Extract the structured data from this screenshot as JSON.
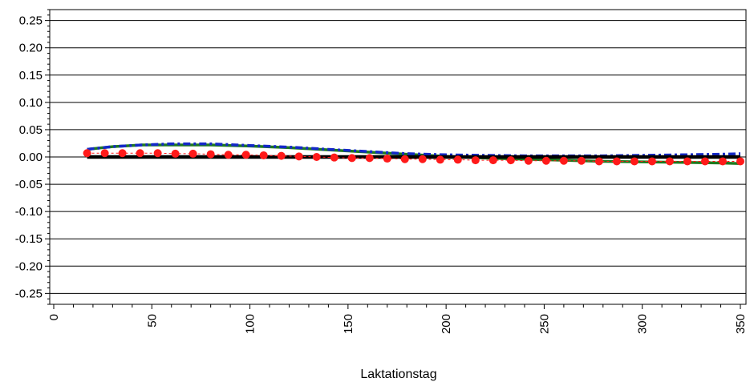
{
  "chart_data": {
    "type": "line",
    "title": "",
    "xlabel": "Laktationstag",
    "ylabel": "",
    "xlim": [
      0,
      350
    ],
    "ylim": [
      -0.27,
      0.27
    ],
    "grid": "horizontal",
    "x_ticks": [
      "0",
      "50",
      "100",
      "150",
      "200",
      "250",
      "300",
      "350"
    ],
    "y_ticks": [
      "0.25",
      "0.20",
      "0.15",
      "0.10",
      "0.05",
      "0.00",
      "-0.05",
      "-0.10",
      "-0.15",
      "-0.20",
      "-0.25"
    ],
    "colors": {
      "black_series": "#000000",
      "blue_series": "#1428c8",
      "green_series": "#1e7a1e",
      "red_series": "#ff1a1a"
    },
    "series": [
      {
        "color_key": "green_series",
        "style": "solid",
        "x": [
          17,
          30,
          45,
          60,
          80,
          100,
          120,
          140,
          160,
          180,
          200,
          220,
          240,
          260,
          280,
          300,
          320,
          340,
          350
        ],
        "y": [
          0.014,
          0.019,
          0.022,
          0.022,
          0.022,
          0.02,
          0.017,
          0.013,
          0.009,
          0.005,
          0.001,
          -0.002,
          -0.004,
          -0.006,
          -0.008,
          -0.009,
          -0.01,
          -0.011,
          -0.012
        ]
      },
      {
        "color_key": "blue_series",
        "style": "dash-dot",
        "x": [
          17,
          30,
          45,
          60,
          80,
          100,
          120,
          140,
          160,
          180,
          200,
          220,
          240,
          260,
          280,
          300,
          320,
          340,
          350
        ],
        "y": [
          0.014,
          0.019,
          0.022,
          0.024,
          0.024,
          0.021,
          0.018,
          0.014,
          0.01,
          0.006,
          0.004,
          0.003,
          0.002,
          0.002,
          0.002,
          0.003,
          0.004,
          0.005,
          0.006
        ]
      },
      {
        "color_key": "black_series",
        "style": "solid-thick",
        "x": [
          17,
          350
        ],
        "y": [
          0.0,
          0.0
        ]
      },
      {
        "color_key": "red_series",
        "style": "dotted-markers",
        "x": [
          17,
          26,
          35,
          44,
          53,
          62,
          71,
          80,
          89,
          98,
          107,
          116,
          125,
          134,
          143,
          152,
          161,
          170,
          179,
          188,
          197,
          206,
          215,
          224,
          233,
          242,
          251,
          260,
          269,
          278,
          287,
          296,
          305,
          314,
          323,
          332,
          341,
          350
        ],
        "y": [
          0.007,
          0.007,
          0.007,
          0.007,
          0.007,
          0.006,
          0.006,
          0.005,
          0.004,
          0.004,
          0.003,
          0.002,
          0.001,
          0.0,
          -0.001,
          -0.002,
          -0.002,
          -0.003,
          -0.004,
          -0.004,
          -0.005,
          -0.005,
          -0.006,
          -0.006,
          -0.006,
          -0.007,
          -0.007,
          -0.007,
          -0.007,
          -0.008,
          -0.008,
          -0.008,
          -0.008,
          -0.008,
          -0.008,
          -0.008,
          -0.008,
          -0.008
        ]
      }
    ]
  }
}
